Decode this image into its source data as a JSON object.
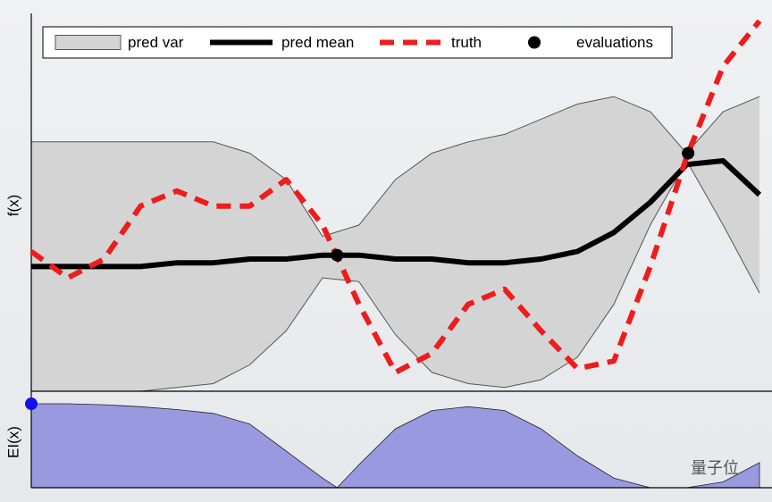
{
  "chart_data": [
    {
      "type": "line",
      "ylabel": "f(x)",
      "xlim": [
        0,
        1
      ],
      "ylim": [
        0,
        10
      ],
      "x": [
        0,
        0.05,
        0.1,
        0.15,
        0.2,
        0.25,
        0.3,
        0.35,
        0.4,
        0.45,
        0.5,
        0.55,
        0.6,
        0.65,
        0.7,
        0.75,
        0.8,
        0.85,
        0.9,
        0.95,
        1
      ],
      "series": [
        {
          "name": "pred var",
          "color": "#d4d4d4",
          "upper": [
            6.6,
            6.6,
            6.6,
            6.6,
            6.6,
            6.6,
            6.3,
            5.6,
            4.1,
            4.4,
            5.6,
            6.3,
            6.6,
            6.8,
            7.2,
            7.6,
            7.8,
            7.4,
            6.3,
            7.4,
            7.8
          ],
          "lower": [
            0,
            0,
            0,
            0,
            0.1,
            0.2,
            0.7,
            1.6,
            3.0,
            2.9,
            1.5,
            0.5,
            0.2,
            0.1,
            0.3,
            0.9,
            2.3,
            4.4,
            6.1,
            4.4,
            2.6
          ]
        },
        {
          "name": "pred mean",
          "color": "#000000",
          "values": [
            3.3,
            3.3,
            3.3,
            3.3,
            3.4,
            3.4,
            3.5,
            3.5,
            3.6,
            3.6,
            3.5,
            3.5,
            3.4,
            3.4,
            3.5,
            3.7,
            4.2,
            5.0,
            6.0,
            6.1,
            5.2
          ]
        },
        {
          "name": "truth",
          "color": "#ee1c1c",
          "values": [
            3.7,
            3.0,
            3.5,
            4.9,
            5.3,
            4.9,
            4.9,
            5.6,
            4.4,
            2.3,
            0.5,
            1.0,
            2.3,
            2.7,
            1.6,
            0.6,
            0.8,
            3.3,
            6.2,
            8.6,
            9.8
          ]
        },
        {
          "name": "evaluations",
          "color": "#000000",
          "x": [
            0.42,
            0.902
          ],
          "values": [
            3.6,
            6.3
          ]
        }
      ]
    },
    {
      "type": "area",
      "ylabel": "EI(x)",
      "color": "#9999e0",
      "xlim": [
        0,
        1
      ],
      "ylim": [
        0,
        1
      ],
      "x": [
        0,
        0.05,
        0.1,
        0.15,
        0.2,
        0.25,
        0.3,
        0.35,
        0.4,
        0.42,
        0.45,
        0.5,
        0.55,
        0.6,
        0.65,
        0.7,
        0.75,
        0.8,
        0.85,
        0.9,
        0.95,
        1
      ],
      "values": [
        0.87,
        0.87,
        0.86,
        0.84,
        0.81,
        0.77,
        0.66,
        0.38,
        0.1,
        0,
        0.24,
        0.61,
        0.8,
        0.84,
        0.8,
        0.61,
        0.33,
        0.1,
        0,
        0,
        0.06,
        0.26
      ],
      "next_point": {
        "x": 0,
        "y": 0.87,
        "color": "#1010ee"
      }
    }
  ],
  "watermark": "量子位"
}
